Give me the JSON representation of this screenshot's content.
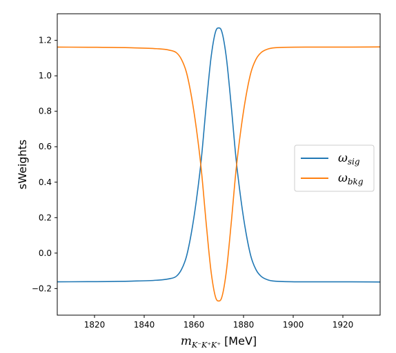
{
  "chart_data": {
    "type": "line",
    "xlabel": {
      "main": "m",
      "sub": "K⁻K⁺K⁺",
      "unit": "[MeV]"
    },
    "ylabel": "sWeights",
    "xlim": [
      1805,
      1935
    ],
    "ylim": [
      -0.35,
      1.35
    ],
    "x_ticks": [
      1820,
      1840,
      1860,
      1880,
      1900,
      1920
    ],
    "y_ticks": [
      -0.2,
      0.0,
      0.2,
      0.4,
      0.6,
      0.8,
      1.0,
      1.2
    ],
    "y_tick_labels": [
      "−0.2",
      "0.0",
      "0.2",
      "0.4",
      "0.6",
      "0.8",
      "1.0",
      "1.2"
    ],
    "grid": false,
    "legend_position": "center-right",
    "series": [
      {
        "name": "ω",
        "name_sub": "sig",
        "color": "#1f77b4",
        "x": [
          1805,
          1820,
          1835,
          1845,
          1850,
          1853,
          1855,
          1857,
          1859,
          1861,
          1863,
          1865,
          1867,
          1869,
          1870,
          1871,
          1873,
          1875,
          1877,
          1879,
          1881,
          1883,
          1885,
          1887,
          1890,
          1895,
          1905,
          1920,
          1935
        ],
        "y": [
          -0.162,
          -0.161,
          -0.158,
          -0.153,
          -0.145,
          -0.13,
          -0.093,
          -0.02,
          0.114,
          0.297,
          0.53,
          0.837,
          1.112,
          1.259,
          1.27,
          1.259,
          1.112,
          0.837,
          0.53,
          0.297,
          0.114,
          -0.02,
          -0.093,
          -0.13,
          -0.152,
          -0.16,
          -0.162,
          -0.162,
          -0.163
        ]
      },
      {
        "name": "ω",
        "name_sub": "bkg",
        "color": "#ff7f0e",
        "x": [
          1805,
          1820,
          1835,
          1845,
          1850,
          1853,
          1855,
          1857,
          1859,
          1861,
          1863,
          1865,
          1867,
          1869,
          1870,
          1871,
          1873,
          1875,
          1877,
          1879,
          1881,
          1883,
          1885,
          1887,
          1890,
          1895,
          1905,
          1920,
          1935
        ],
        "y": [
          1.162,
          1.161,
          1.158,
          1.153,
          1.145,
          1.13,
          1.093,
          1.02,
          0.886,
          0.703,
          0.47,
          0.163,
          -0.112,
          -0.259,
          -0.27,
          -0.259,
          -0.112,
          0.163,
          0.47,
          0.703,
          0.886,
          1.02,
          1.093,
          1.13,
          1.152,
          1.16,
          1.162,
          1.162,
          1.163
        ]
      }
    ]
  }
}
